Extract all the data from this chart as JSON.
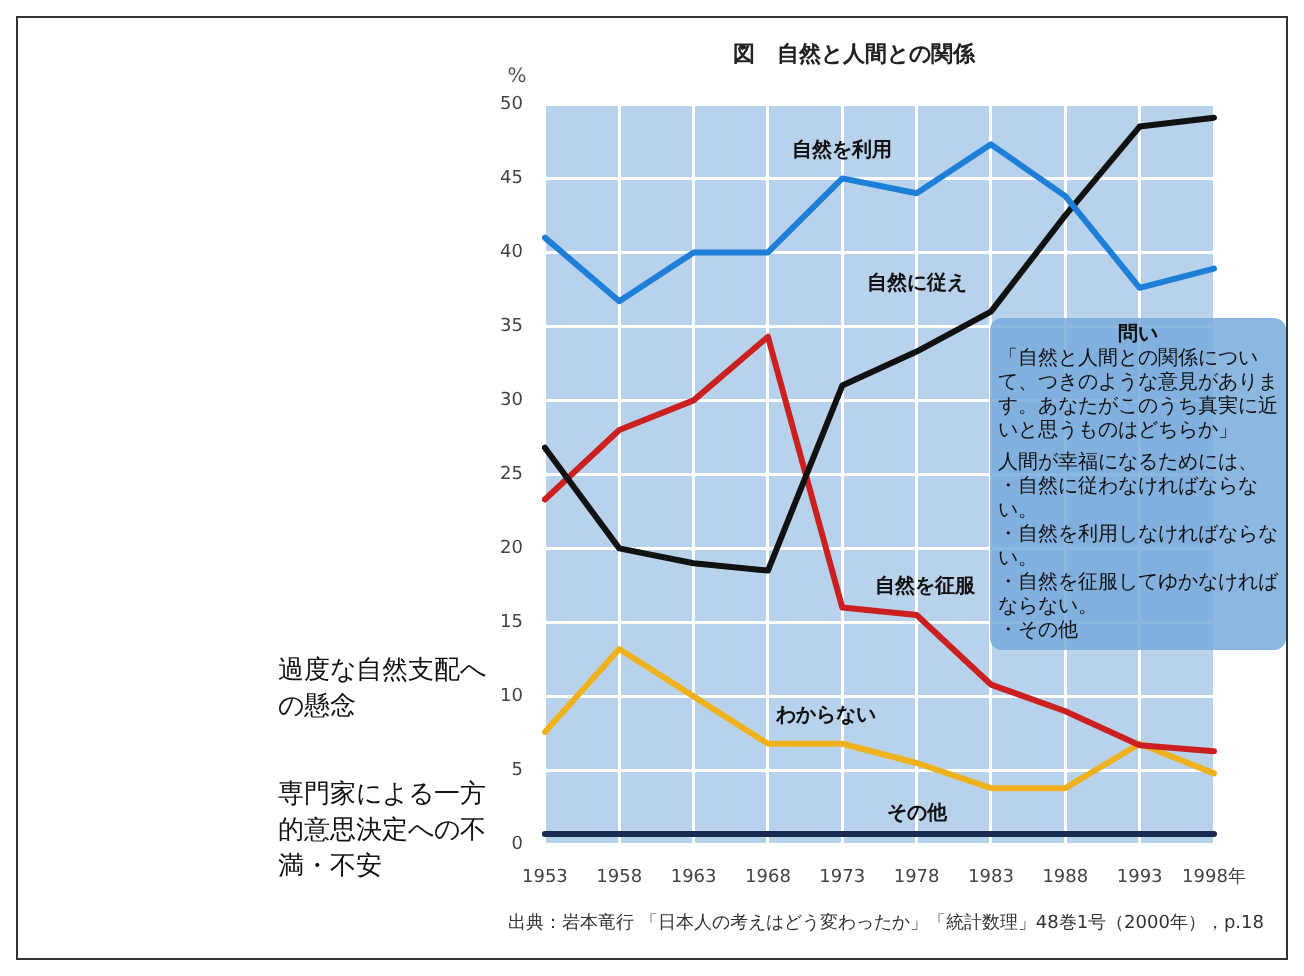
{
  "chart_data": {
    "type": "line",
    "title": "図　自然と人間との関係",
    "ylabel": "%",
    "categories": [
      "1953",
      "1958",
      "1963",
      "1968",
      "1973",
      "1978",
      "1983",
      "1988",
      "1993",
      "1998年"
    ],
    "series": [
      {
        "name": "自然を利用",
        "color": "#1e7fd8",
        "values": [
          41,
          36.7,
          40,
          40,
          45,
          44,
          47.3,
          43.8,
          37.6,
          38.9
        ]
      },
      {
        "name": "自然に従え",
        "color": "#111111",
        "values": [
          26.8,
          20,
          19,
          18.5,
          31,
          33.3,
          36,
          42.5,
          48.5,
          49.1
        ]
      },
      {
        "name": "自然を征服",
        "color": "#cc1f1f",
        "values": [
          23.3,
          28,
          30,
          34.3,
          16,
          15.5,
          10.8,
          9,
          6.7,
          6.3
        ]
      },
      {
        "name": "わからない",
        "color": "#f0b21c",
        "values": [
          7.6,
          13.2,
          10,
          6.8,
          6.8,
          5.5,
          3.8,
          3.8,
          6.8,
          4.8
        ]
      },
      {
        "name": "その他",
        "color": "#1a2a50",
        "values": [
          0.7,
          0.7,
          0.7,
          0.7,
          0.7,
          0.7,
          0.7,
          0.7,
          0.7,
          0.7
        ]
      }
    ],
    "ylim": [
      0,
      50
    ],
    "yticks": [
      0,
      5,
      10,
      15,
      20,
      25,
      30,
      35,
      40,
      45,
      50
    ],
    "grid": true,
    "legend": false,
    "marker": "none",
    "line_style": "solid",
    "annotations": [
      "出典：岩本竜行 「日本人の考えはどう変わったか」「統計数理」48巻1号（2000年），p.18",
      "過度な自然支配への懸念",
      "専門家による一方的意思決定への不満・不安",
      "問い",
      "「自然と人間との関係について、つきのような意見があります。あなたがこのうち真実に近いと思うものはどちらか」",
      "人間が幸福になるためには、",
      "・自然に従わなければならない。",
      "・自然を利用しなければならない。",
      "・自然を征服してゆかなければならない。",
      "・その他"
    ]
  }
}
